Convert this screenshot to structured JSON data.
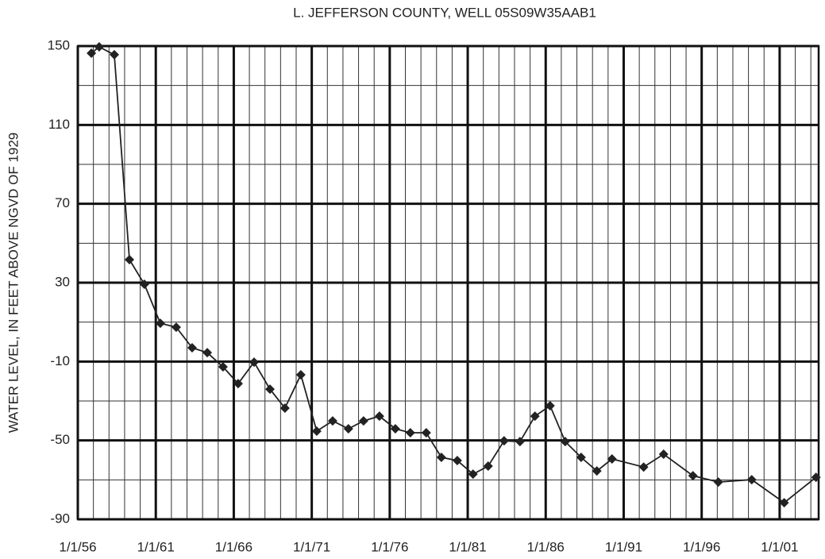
{
  "chart_data": {
    "type": "line",
    "title": "L. JEFFERSON COUNTY, WELL 05S09W35AAB1",
    "y_label": "WATER LEVEL,  IN  FEET ABOVE NGVD OF 1929",
    "x": [
      1956.87,
      1957.37,
      1958.34,
      1959.31,
      1960.27,
      1961.29,
      1962.31,
      1963.33,
      1964.3,
      1965.31,
      1966.28,
      1967.3,
      1968.32,
      1969.28,
      1970.3,
      1971.32,
      1972.34,
      1973.35,
      1974.32,
      1975.34,
      1976.36,
      1977.32,
      1978.34,
      1979.31,
      1980.33,
      1981.34,
      1982.31,
      1983.33,
      1984.35,
      1985.31,
      1986.28,
      1987.25,
      1988.27,
      1989.28,
      1990.25,
      1992.28,
      1993.56,
      1995.44,
      1997.07,
      1999.21,
      2001.29,
      2003.33
    ],
    "series": [
      {
        "name": "Water level",
        "color": "#222222",
        "values": [
          146.4,
          149.6,
          145.6,
          41.7,
          29.2,
          9.4,
          7.4,
          -3.0,
          -5.5,
          -12.7,
          -21.2,
          -10.3,
          -24.0,
          -33.6,
          -16.7,
          -45.3,
          -40.1,
          -44.1,
          -40.1,
          -37.7,
          -44.1,
          -46.1,
          -46.1,
          -58.6,
          -60.2,
          -67.1,
          -63.0,
          -50.2,
          -50.6,
          -37.7,
          -32.4,
          -50.6,
          -58.6,
          -65.5,
          -59.4,
          -63.5,
          -57.0,
          -67.9,
          -71.1,
          -69.9,
          -81.6,
          -68.7
        ]
      }
    ],
    "xlim": [
      1956,
      2003.5
    ],
    "xticks": [
      {
        "value": 1956,
        "label": "1/1/56"
      },
      {
        "value": 1961,
        "label": "1/1/61"
      },
      {
        "value": 1966,
        "label": "1/1/66"
      },
      {
        "value": 1971,
        "label": "1/1/71"
      },
      {
        "value": 1976,
        "label": "1/1/76"
      },
      {
        "value": 1981,
        "label": "1/1/81"
      },
      {
        "value": 1986,
        "label": "1/1/86"
      },
      {
        "value": 1991,
        "label": "1/1/91"
      },
      {
        "value": 1996,
        "label": "1/1/96"
      },
      {
        "value": 2001,
        "label": "1/1/01"
      }
    ],
    "xminorticks": [
      1957,
      1958,
      1959,
      1960,
      1962,
      1963,
      1964,
      1965,
      1967,
      1968,
      1969,
      1970,
      1972,
      1973,
      1974,
      1975,
      1977,
      1978,
      1979,
      1980,
      1982,
      1983,
      1984,
      1985,
      1987,
      1988,
      1989,
      1990,
      1992,
      1993,
      1994,
      1995,
      1997,
      1998,
      1999,
      2000,
      2002,
      2003
    ],
    "ylim": [
      -90,
      150
    ],
    "yticks": [
      -90,
      -50,
      -10,
      30,
      70,
      110,
      150
    ],
    "yminorticks": [
      -70,
      -30,
      10,
      50,
      90,
      130
    ],
    "grid": true
  }
}
